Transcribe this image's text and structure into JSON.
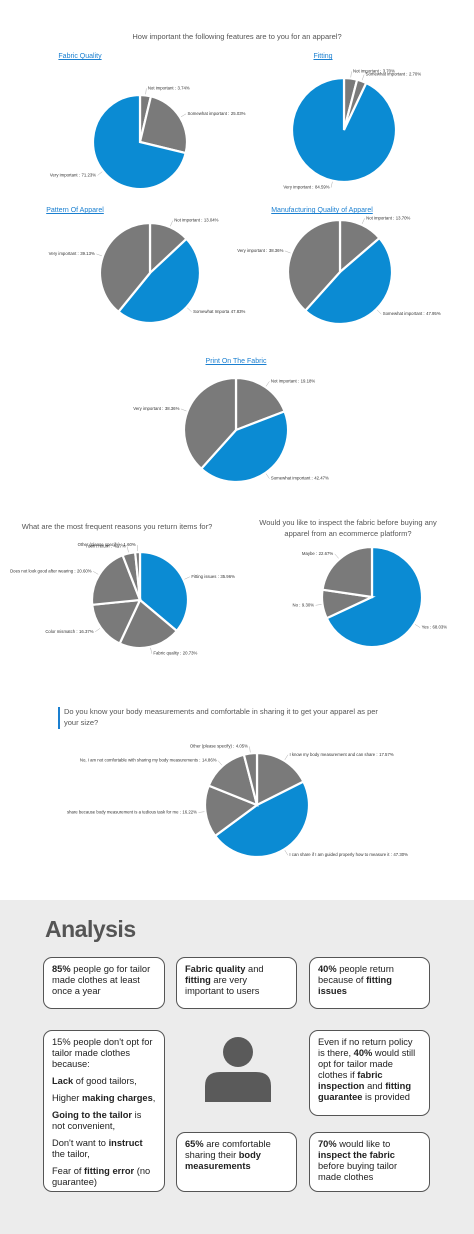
{
  "header": {
    "title": "How important the following features are to you for an apparel?"
  },
  "chart_data": [
    {
      "type": "pie",
      "title": "Fabric Quality",
      "categories": [
        "Not important :",
        "Somewhat important :",
        "Very important :"
      ],
      "values": [
        3.74,
        25.03,
        71.23
      ],
      "value_labels": [
        "3.74%",
        "25.03%",
        "71.23%"
      ],
      "colors": [
        "#7a7a7a",
        "#7a7a7a",
        "#0b8bd3"
      ]
    },
    {
      "type": "pie",
      "title": "Fitting",
      "categories": [
        "Not important :",
        "Somewhat important :",
        "Very important :"
      ],
      "values": [
        3.7,
        2.7,
        84.59
      ],
      "value_labels": [
        "3.70%",
        "2.70%",
        "84.59%"
      ],
      "colors": [
        "#7a7a7a",
        "#7a7a7a",
        "#0b8bd3"
      ]
    },
    {
      "type": "pie",
      "title": "Pattern Of Apparel",
      "categories": [
        "Not important :",
        "Somewhat Importa",
        "Very important :"
      ],
      "values": [
        13.04,
        47.83,
        39.13
      ],
      "value_labels": [
        "13.04%",
        "47.83%",
        "39.13%"
      ],
      "colors": [
        "#7a7a7a",
        "#0b8bd3",
        "#7a7a7a"
      ]
    },
    {
      "type": "pie",
      "title": "Manufacturing Quality of Apparel",
      "categories": [
        "Not important :",
        "Somewhat important :",
        "Very important :"
      ],
      "values": [
        13.7,
        47.95,
        38.36
      ],
      "value_labels": [
        "13.70%",
        "47.95%",
        "38.36%"
      ],
      "colors": [
        "#7a7a7a",
        "#0b8bd3",
        "#7a7a7a"
      ]
    },
    {
      "type": "pie",
      "title": "Print On The Fabric",
      "categories": [
        "Not important :",
        "Somewhat important :",
        "Very important :"
      ],
      "values": [
        19.18,
        42.47,
        38.36
      ],
      "value_labels": [
        "19.18%",
        "42.47%",
        "38.36%"
      ],
      "colors": [
        "#7a7a7a",
        "#0b8bd3",
        "#7a7a7a"
      ]
    },
    {
      "type": "pie",
      "title": "What are the most frequent reasons you return items for?",
      "categories": [
        "Fitting issues :",
        "Fabric quality :",
        "Color mismatch :",
        "Does not look good after wearing :",
        "I don't return :",
        "Other (please specify) :"
      ],
      "values": [
        35.96,
        20.73,
        16.37,
        20.6,
        4.27,
        1.6
      ],
      "value_labels": [
        "35.96%",
        "20.73%",
        "16.37%",
        "20.60%",
        "4.27%",
        "1.60%"
      ],
      "colors": [
        "#0b8bd3",
        "#7a7a7a",
        "#7a7a7a",
        "#7a7a7a",
        "#7a7a7a",
        "#7a7a7a"
      ]
    },
    {
      "type": "pie",
      "title": "Would you like to inspect the fabric before buying any apparel from an ecommerce platform?",
      "categories": [
        "Yes :",
        "No :",
        "Maybe :"
      ],
      "values": [
        68.03,
        9.3,
        22.67
      ],
      "value_labels": [
        "68.03%",
        "9.30%",
        "22.67%"
      ],
      "colors": [
        "#0b8bd3",
        "#7a7a7a",
        "#7a7a7a"
      ]
    },
    {
      "type": "pie",
      "title": "Do you know your body measurements and comfortable in sharing it to get your apparel as per your size?",
      "categories": [
        "I know my body measurement and can share :",
        "I can share if I am guided properly how to measure it :",
        "share because body measurement is a tedious task for me :",
        "No, I am not comfortable with sharing my body measurements :",
        "Other (please specify) :"
      ],
      "values": [
        17.57,
        47.3,
        16.22,
        14.86,
        4.05
      ],
      "value_labels": [
        "17.57%",
        "47.30%",
        "16.22%",
        "14.86%",
        "4.05%"
      ],
      "colors": [
        "#7a7a7a",
        "#0b8bd3",
        "#7a7a7a",
        "#7a7a7a",
        "#7a7a7a"
      ]
    }
  ],
  "analysis": {
    "title": "Analysis",
    "boxes": [
      {
        "paragraphs": [
          [
            {
              "text": "85%",
              "bold": true
            },
            {
              "text": " people go for tailor made clothes at least once a year"
            }
          ]
        ]
      },
      {
        "paragraphs": [
          [
            {
              "text": "Fabric quality",
              "bold": true
            },
            {
              "text": " and "
            },
            {
              "text": "fitting",
              "bold": true
            },
            {
              "text": " are very important to users"
            }
          ]
        ]
      },
      {
        "paragraphs": [
          [
            {
              "text": "40%",
              "bold": true
            },
            {
              "text": " people return because of "
            },
            {
              "text": "fitting issues",
              "bold": true
            }
          ]
        ]
      },
      {
        "paragraphs": [
          [
            {
              "text": "15% people don't opt for tailor made clothes because:"
            }
          ],
          [
            {
              "text": "Lack",
              "bold": true
            },
            {
              "text": " of good tailors,"
            }
          ],
          [
            {
              "text": "Higher "
            },
            {
              "text": "making charges",
              "bold": true
            },
            {
              "text": ","
            }
          ],
          [
            {
              "text": "Going to the tailor",
              "bold": true
            },
            {
              "text": " is not convenient,"
            }
          ],
          [
            {
              "text": "Don't want to "
            },
            {
              "text": "instruct",
              "bold": true
            },
            {
              "text": " the tailor,"
            }
          ],
          [
            {
              "text": "Fear of "
            },
            {
              "text": "fitting error",
              "bold": true
            },
            {
              "text": " (no guarantee)"
            }
          ]
        ]
      },
      {
        "paragraphs": [
          [
            {
              "text": "Even if no return policy is there, "
            },
            {
              "text": "40%",
              "bold": true
            },
            {
              "text": " would still opt for tailor made clothes if "
            },
            {
              "text": "fabric inspection",
              "bold": true
            },
            {
              "text": " and "
            },
            {
              "text": "fitting guarantee",
              "bold": true
            },
            {
              "text": " is provided"
            }
          ]
        ]
      },
      {
        "paragraphs": [
          [
            {
              "text": "65%",
              "bold": true
            },
            {
              "text": " are comfortable sharing their "
            },
            {
              "text": "body measurements",
              "bold": true
            }
          ]
        ]
      },
      {
        "paragraphs": [
          [
            {
              "text": "70%",
              "bold": true
            },
            {
              "text": " would like to "
            },
            {
              "text": "inspect the fabric",
              "bold": true
            },
            {
              "text": " before buying tailor made clothes"
            }
          ]
        ]
      }
    ]
  }
}
